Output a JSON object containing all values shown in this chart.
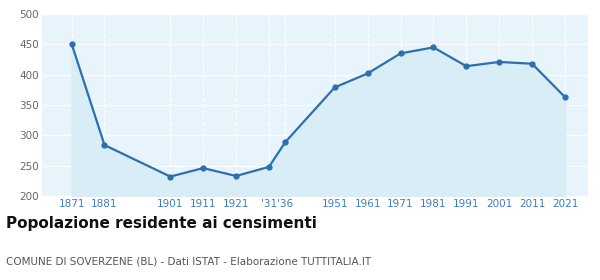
{
  "years": [
    1871,
    1881,
    1901,
    1911,
    1921,
    1931,
    1936,
    1951,
    1961,
    1971,
    1981,
    1991,
    2001,
    2011,
    2021
  ],
  "values": [
    451,
    284,
    232,
    246,
    233,
    248,
    289,
    379,
    402,
    435,
    445,
    414,
    421,
    418,
    363
  ],
  "x_tick_labels": [
    "1871",
    "1881",
    "1901",
    "1911",
    "1921",
    "'31",
    "'36",
    "1951",
    "1961",
    "1971",
    "1981",
    "1991",
    "2001",
    "2011",
    "2021"
  ],
  "ylim": [
    200,
    500
  ],
  "yticks": [
    200,
    250,
    300,
    350,
    400,
    450,
    500
  ],
  "xlim": [
    1862,
    2028
  ],
  "line_color": "#2e6fad",
  "fill_color": "#d9edf7",
  "marker": "o",
  "marker_size": 3.5,
  "line_width": 1.6,
  "bg_color": "#e8f4fb",
  "grid_color": "#ffffff",
  "tick_color": "#3a7fc1",
  "ytick_color": "#666666",
  "title": "Popolazione residente ai censimenti",
  "title_fontsize": 11,
  "title_fontweight": "bold",
  "subtitle": "COMUNE DI SOVERZENE (BL) - Dati ISTAT - Elaborazione TUTTITALIA.IT",
  "subtitle_fontsize": 7.5
}
